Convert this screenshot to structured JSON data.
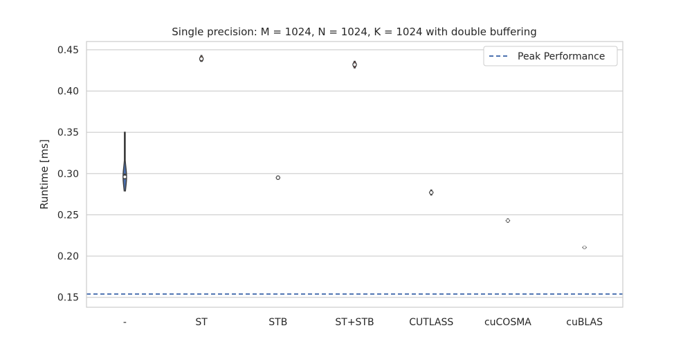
{
  "chart_data": {
    "type": "violin",
    "title": "Single precision: M = 1024, N = 1024, K = 1024 with double buffering",
    "xlabel": "",
    "ylabel": "Runtime [ms]",
    "ylim": [
      0.138,
      0.46
    ],
    "yticks": [
      "0.15",
      "0.20",
      "0.25",
      "0.30",
      "0.35",
      "0.40",
      "0.45"
    ],
    "grid": true,
    "legend_position": "top-right",
    "categories": [
      "-",
      "ST",
      "STB",
      "ST+STB",
      "CUTLASS",
      "cuCOSMA",
      "cuBLAS"
    ],
    "violins": [
      {
        "category": "-",
        "color": "#4c72b0",
        "median": 0.296,
        "q1": 0.293,
        "q3": 0.3,
        "min": 0.279,
        "max": 0.35
      },
      {
        "category": "ST",
        "color": "#dd8452",
        "median": 0.439,
        "q1": 0.438,
        "q3": 0.441,
        "min": 0.436,
        "max": 0.443
      },
      {
        "category": "STB",
        "color": "#55a868",
        "median": 0.295,
        "q1": 0.294,
        "q3": 0.296,
        "min": 0.293,
        "max": 0.297
      },
      {
        "category": "ST+STB",
        "color": "#c44e52",
        "median": 0.432,
        "q1": 0.431,
        "q3": 0.434,
        "min": 0.428,
        "max": 0.436
      },
      {
        "category": "CUTLASS",
        "color": "#8172b3",
        "median": 0.277,
        "q1": 0.276,
        "q3": 0.278,
        "min": 0.274,
        "max": 0.28
      },
      {
        "category": "cuCOSMA",
        "color": "#937860",
        "median": 0.243,
        "q1": 0.2425,
        "q3": 0.2435,
        "min": 0.241,
        "max": 0.245
      },
      {
        "category": "cuBLAS",
        "color": "#da8bc3",
        "median": 0.2105,
        "q1": 0.2103,
        "q3": 0.2107,
        "min": 0.2095,
        "max": 0.2115
      }
    ],
    "peak_line": {
      "label": "Peak Performance",
      "value": 0.154,
      "color": "#4c72b0"
    }
  }
}
